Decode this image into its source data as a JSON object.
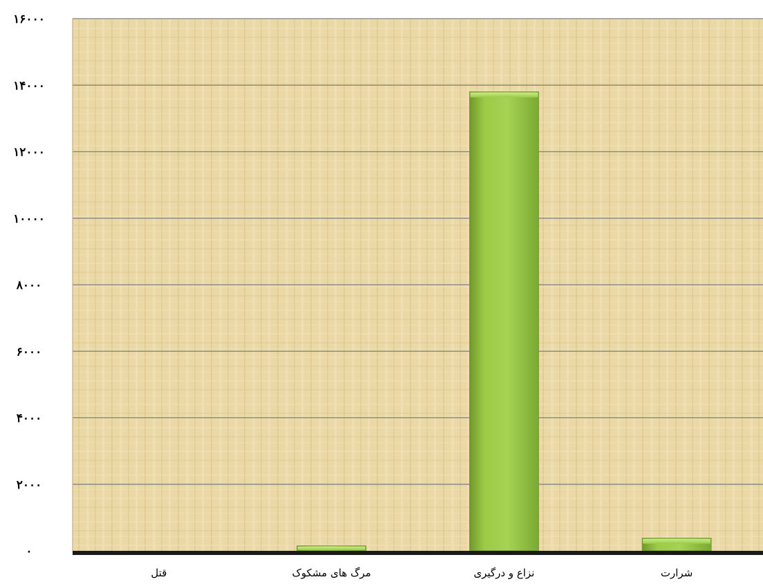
{
  "chart_data": {
    "type": "bar",
    "title": "",
    "xlabel": "",
    "ylabel": "",
    "categories": [
      "قتل",
      "مرگ های مشکوک",
      "نزاع و درگیری",
      "شرارت"
    ],
    "values": [
      0,
      150,
      13800,
      380
    ],
    "ylim": [
      0,
      16000
    ],
    "yticks": [
      0,
      2000,
      4000,
      6000,
      8000,
      10000,
      12000,
      14000,
      16000
    ],
    "ytick_labels": [
      "٠",
      "٢٠٠٠",
      "۴٠٠٠",
      "۶٠٠٠",
      "٨٠٠٠",
      "١٠٠٠٠",
      "١٢٠٠٠",
      "١۴٠٠٠",
      "١۶٠٠٠"
    ],
    "grid": true,
    "legend": "none",
    "colors": {
      "bar": "#8fbf3f",
      "bar_light": "#b6dc63",
      "bar_dark": "#6f9a2a",
      "plot_background": "#ead8a6",
      "texture_light": "#f2e3ba",
      "texture_dark": "#dcc58c",
      "gridline": "#7f7f82",
      "axis": "#1a1a1a"
    }
  }
}
